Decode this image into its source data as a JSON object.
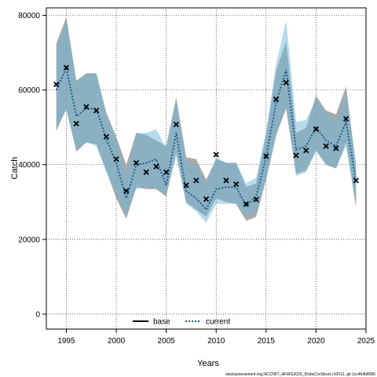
{
  "chart_data": {
    "type": "line",
    "xlabel": "Years",
    "ylabel": "Catch",
    "xlim": [
      1993,
      2025
    ],
    "ylim": [
      -4000,
      82000
    ],
    "grid": true,
    "x_ticks": [
      1995,
      2000,
      2005,
      2010,
      2015,
      2020,
      2025
    ],
    "y_ticks": [
      0,
      20000,
      40000,
      60000,
      80000
    ],
    "x_tick_labels": [
      "1995",
      "2000",
      "2005",
      "2010",
      "2015",
      "2020",
      "2025"
    ],
    "y_tick_labels": [
      "0",
      "20000",
      "40000",
      "60000",
      "80000"
    ],
    "legend": {
      "placement": "bottom",
      "entries": [
        {
          "name": "base",
          "color": "#000000",
          "style": "solid"
        },
        {
          "name": "current",
          "color": "#1f5d8c",
          "style": "dotted"
        }
      ]
    },
    "colors": {
      "base_band": "#8c8c8c",
      "current_band": "#6cb7dc",
      "current_line": "#1f5d8c",
      "observed_marker": "#000000"
    },
    "observed": {
      "x": [
        1994,
        1995,
        1996,
        1997,
        1998,
        1999,
        2000,
        2001,
        2002,
        2003,
        2004,
        2005,
        2006,
        2007,
        2008,
        2009,
        2010,
        2011,
        2012,
        2013,
        2014,
        2015,
        2016,
        2017,
        2018,
        2019,
        2020,
        2021,
        2022,
        2023,
        2024
      ],
      "y": [
        61500,
        66000,
        51000,
        55500,
        54500,
        47500,
        41500,
        33000,
        40500,
        38000,
        39500,
        38000,
        50800,
        34500,
        35800,
        30800,
        42700,
        35800,
        34800,
        29500,
        30700,
        42300,
        57500,
        62000,
        42500,
        43800,
        49500,
        45000,
        44400,
        52300,
        35800
      ]
    },
    "series": [
      {
        "name": "base",
        "x": [
          1994,
          1995,
          1996,
          1997,
          1998,
          1999,
          2000,
          2001,
          2002,
          2003,
          2004,
          2005,
          2006,
          2007,
          2008,
          2009,
          2010,
          2011,
          2012,
          2013,
          2014,
          2015,
          2016,
          2017,
          2018,
          2019,
          2020,
          2021,
          2022,
          2023,
          2024
        ],
        "lower": [
          49000,
          55000,
          43500,
          46000,
          45500,
          38500,
          31000,
          25500,
          34000,
          33500,
          33500,
          31500,
          43500,
          30000,
          28000,
          26000,
          31000,
          30000,
          29500,
          25000,
          26000,
          36000,
          48000,
          55000,
          37500,
          38500,
          44000,
          40000,
          39000,
          46000,
          28500
        ],
        "upper": [
          72500,
          79500,
          62500,
          64500,
          64500,
          54000,
          47500,
          40000,
          48500,
          48000,
          46500,
          45000,
          58000,
          42000,
          41500,
          36000,
          41500,
          40500,
          40500,
          34000,
          35000,
          48000,
          65000,
          73000,
          48500,
          50000,
          58500,
          54500,
          53500,
          61000,
          39500
        ]
      },
      {
        "name": "current",
        "x": [
          1994,
          1995,
          1996,
          1997,
          1998,
          1999,
          2000,
          2001,
          2002,
          2003,
          2004,
          2005,
          2006,
          2007,
          2008,
          2009,
          2010,
          2011,
          2012,
          2013,
          2014,
          2015,
          2016,
          2017,
          2018,
          2019,
          2020,
          2021,
          2022,
          2023,
          2024
        ],
        "y": [
          60000,
          66000,
          53000,
          55000,
          55000,
          47000,
          40500,
          31000,
          40000,
          40500,
          41500,
          34500,
          48500,
          33000,
          31000,
          28000,
          33500,
          34000,
          34000,
          29000,
          31500,
          42000,
          56500,
          65500,
          44000,
          45000,
          50000,
          46500,
          45000,
          51500,
          35500
        ],
        "lower": [
          50000,
          54500,
          44000,
          46000,
          45000,
          38000,
          32000,
          26500,
          33500,
          34000,
          33500,
          32000,
          42000,
          29500,
          27500,
          24500,
          29500,
          29500,
          29500,
          26000,
          27500,
          36000,
          47500,
          56000,
          37000,
          38000,
          43500,
          40000,
          39000,
          45000,
          29500
        ],
        "upper": [
          70500,
          79000,
          62500,
          64000,
          64500,
          53500,
          46500,
          37000,
          48500,
          48500,
          49500,
          44500,
          57500,
          41000,
          39500,
          35000,
          42000,
          40500,
          40500,
          35000,
          36500,
          49000,
          67000,
          78500,
          51500,
          52000,
          57500,
          54000,
          51500,
          59000,
          40500
        ]
      }
    ]
  },
  "footer_text": "stockassessment.org,NCCN5T_AFWG2025_IDobsCorStruct,r10012, git:1cc464b8096"
}
